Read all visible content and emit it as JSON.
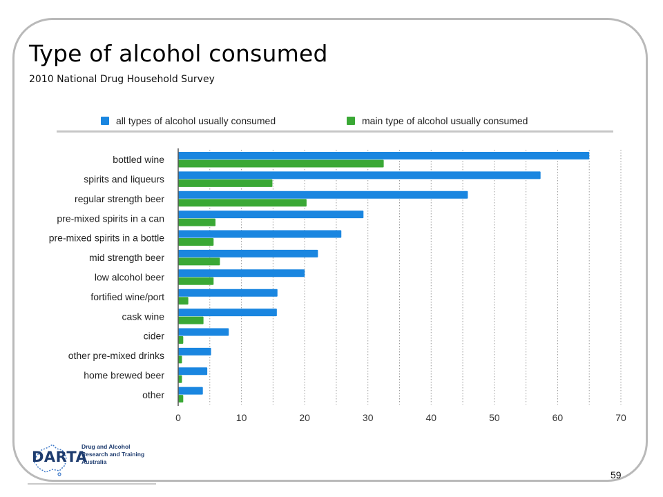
{
  "slide": {
    "title": "Type of alcohol consumed",
    "subtitle": "2010 National Drug Household Survey",
    "page_number": "59"
  },
  "logo": {
    "name": "DARTA",
    "lines": [
      "Drug and Alcohol",
      "Research and Training",
      "Australia"
    ]
  },
  "colors": {
    "series_all": "#1a86e0",
    "series_main": "#3aa835",
    "grid": "#9a9a9a",
    "frame": "#b9b9b9"
  },
  "chart_data": {
    "type": "bar",
    "orientation": "horizontal",
    "title": "",
    "xlabel": "",
    "ylabel": "",
    "xlim": [
      0,
      70
    ],
    "x_ticks": [
      0,
      10,
      20,
      30,
      40,
      50,
      60,
      70
    ],
    "grid": "vertical dotted",
    "legend_position": "top",
    "categories": [
      "bottled wine",
      "spirits and liqueurs",
      "regular strength beer",
      "pre-mixed spirits in a can",
      "pre-mixed spirits in a bottle",
      "mid strength beer",
      "low alcohol beer",
      "fortified wine/port",
      "cask wine",
      "cider",
      "other pre-mixed drinks",
      "home brewed beer",
      "other"
    ],
    "series": [
      {
        "name": "all types of alcohol usually consumed",
        "color": "#1a86e0",
        "values": [
          65.0,
          57.3,
          45.8,
          29.3,
          25.8,
          22.1,
          20.0,
          15.7,
          15.6,
          8.0,
          5.2,
          4.6,
          3.9
        ]
      },
      {
        "name": "main type of alcohol usually consumed",
        "color": "#3aa835",
        "values": [
          32.5,
          14.9,
          20.3,
          5.9,
          5.6,
          6.6,
          5.6,
          1.6,
          4.0,
          0.8,
          0.6,
          0.6,
          0.8
        ]
      }
    ]
  }
}
